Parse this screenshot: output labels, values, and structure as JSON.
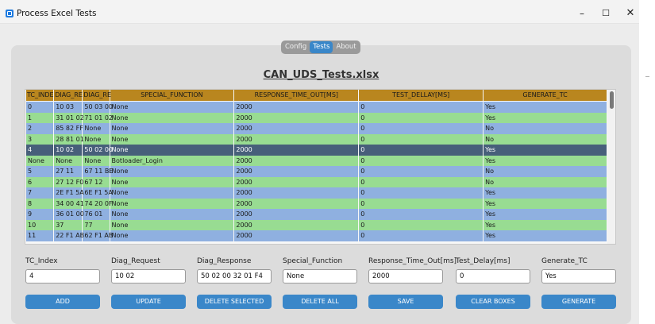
{
  "window": {
    "title": "Process Excel Tests",
    "controls": {
      "minimize": "–",
      "maximize": "☐",
      "close": "✕"
    }
  },
  "tabs": [
    {
      "label": "Config",
      "active": false
    },
    {
      "label": "Tests",
      "active": true
    },
    {
      "label": "About",
      "active": false
    }
  ],
  "file_title": "CAN_UDS_Tests.xlsx",
  "table": {
    "columns": [
      "TC_INDE",
      "DIAG_RE",
      "DIAG_RE",
      "SPECIAL_FUNCTION",
      "RESPONSE_TIME_OUT[MS]",
      "TEST_DELLAY[MS]",
      "GENERATE_TC"
    ],
    "rows": [
      [
        "0",
        "10 03",
        "50 03 00",
        "None",
        "2000",
        "0",
        "Yes"
      ],
      [
        "1",
        "31 01 02",
        "71 01 02",
        "None",
        "2000",
        "0",
        "Yes"
      ],
      [
        "2",
        "85 82 FF",
        "None",
        "None",
        "2000",
        "0",
        "No"
      ],
      [
        "3",
        "28 81 01",
        "None",
        "None",
        "2000",
        "0",
        "No"
      ],
      [
        "4",
        "10 02",
        "50 02 00",
        "None",
        "2000",
        "0",
        "Yes"
      ],
      [
        "None",
        "None",
        "None",
        "Botloader_Login",
        "2000",
        "0",
        "Yes"
      ],
      [
        "5",
        "27 11",
        "67 11 BE",
        "None",
        "2000",
        "0",
        "No"
      ],
      [
        "6",
        "27 12 F0",
        "67 12",
        "None",
        "2000",
        "0",
        "No"
      ],
      [
        "7",
        "2E F1 5A",
        "6E F1 5A",
        "None",
        "2000",
        "0",
        "Yes"
      ],
      [
        "8",
        "34 00 41",
        "74 20 0F",
        "None",
        "2000",
        "0",
        "Yes"
      ],
      [
        "9",
        "36 01 00",
        "76 01",
        "None",
        "2000",
        "0",
        "Yes"
      ],
      [
        "10",
        "37",
        "77",
        "None",
        "2000",
        "0",
        "Yes"
      ],
      [
        "11",
        "22 F1 AB",
        "62 F1 AB",
        "None",
        "2000",
        "0",
        "Yes"
      ]
    ],
    "selected_row_index": 4
  },
  "fields": {
    "tc_index": {
      "label": "TC_Index",
      "value": "4"
    },
    "diag_request": {
      "label": "Diag_Request",
      "value": "10 02"
    },
    "diag_response": {
      "label": "Diag_Response",
      "value": "50 02 00 32 01 F4"
    },
    "special_function": {
      "label": "Special_Function",
      "value": "None"
    },
    "response_time_out": {
      "label": "Response_Time_Out[ms]",
      "value": "2000"
    },
    "test_delay": {
      "label": "Test_Delay[ms]",
      "value": "0"
    },
    "generate_tc": {
      "label": "Generate_TC",
      "value": "Yes"
    }
  },
  "buttons": {
    "add": "ADD",
    "update": "UPDATE",
    "delete_selected": "DELETE SELECTED",
    "delete_all": "DELETE ALL",
    "save": "SAVE",
    "clear_boxes": "CLEAR BOXES",
    "generate": "GENERATE"
  },
  "colors": {
    "accent": "#3a87c9",
    "header": "#b9861f",
    "row_blue": "#8fb0e0",
    "row_green": "#98dc92",
    "row_selected": "#475f7a"
  }
}
